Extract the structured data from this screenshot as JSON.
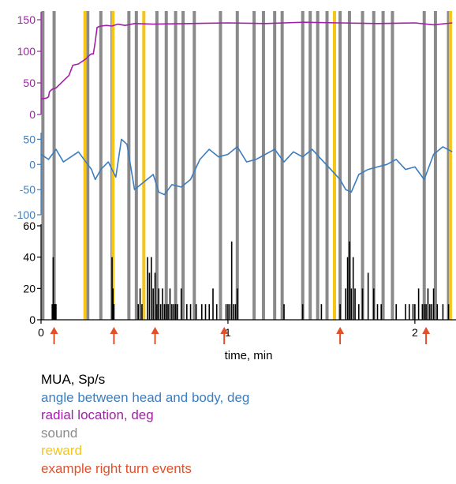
{
  "chart_data": [
    {
      "panel": "radial",
      "type": "line",
      "color": "#a020a8",
      "ylim": [
        0,
        160
      ],
      "yticks": [
        "0",
        "50",
        "100",
        "150"
      ],
      "ytick_values": [
        0,
        50,
        100,
        150
      ],
      "series": [
        {
          "name": "radial location, deg",
          "x": [
            0.0,
            0.01,
            0.03,
            0.04,
            0.045,
            0.06,
            0.08,
            0.15,
            0.17,
            0.2,
            0.24,
            0.26,
            0.27,
            0.28,
            0.29,
            0.3,
            0.32,
            0.35,
            0.38,
            0.41,
            0.45,
            0.5,
            0.6,
            0.8,
            1.0,
            1.2,
            1.4,
            1.6,
            1.8,
            2.0,
            2.1,
            2.2
          ],
          "y": [
            25,
            25,
            26,
            28,
            36,
            40,
            42,
            62,
            78,
            80,
            88,
            94,
            96,
            96,
            115,
            138,
            140,
            141,
            140,
            143,
            141,
            144,
            143,
            144,
            145,
            144,
            146,
            145,
            144,
            145,
            142,
            145
          ]
        }
      ]
    },
    {
      "panel": "angle",
      "type": "line",
      "color": "#3b7dbf",
      "ylim": [
        -100,
        60
      ],
      "yticks": [
        "-100",
        "-50",
        "0",
        "50"
      ],
      "ytick_values": [
        -100,
        -50,
        0,
        50
      ],
      "series": [
        {
          "name": "angle between head and body, deg",
          "x": [
            0.0,
            0.04,
            0.08,
            0.12,
            0.16,
            0.2,
            0.24,
            0.27,
            0.29,
            0.32,
            0.36,
            0.4,
            0.43,
            0.46,
            0.5,
            0.55,
            0.6,
            0.63,
            0.66,
            0.7,
            0.75,
            0.8,
            0.85,
            0.9,
            0.95,
            1.0,
            1.05,
            1.1,
            1.15,
            1.2,
            1.25,
            1.3,
            1.35,
            1.4,
            1.45,
            1.5,
            1.55,
            1.6,
            1.63,
            1.66,
            1.7,
            1.75,
            1.8,
            1.85,
            1.9,
            1.95,
            2.0,
            2.05,
            2.1,
            2.15,
            2.2
          ],
          "y": [
            20,
            10,
            30,
            5,
            15,
            25,
            5,
            -10,
            -30,
            -10,
            5,
            -25,
            50,
            40,
            -50,
            -35,
            -20,
            -55,
            -60,
            -40,
            -45,
            -30,
            10,
            30,
            15,
            20,
            35,
            5,
            10,
            20,
            30,
            5,
            25,
            15,
            30,
            10,
            -10,
            -30,
            -50,
            -55,
            -20,
            -10,
            -5,
            0,
            10,
            -10,
            -5,
            -30,
            20,
            35,
            25
          ]
        }
      ]
    },
    {
      "panel": "mua",
      "type": "bar",
      "xlabel": "time, min",
      "xticks": [
        "0",
        "1",
        "2"
      ],
      "xtick_values": [
        0,
        1,
        2
      ],
      "ylim": [
        0,
        60
      ],
      "yticks": [
        "0",
        "20",
        "40",
        "60"
      ],
      "ytick_values": [
        0,
        20,
        40,
        60
      ],
      "series": [
        {
          "name": "MUA, Sp/s",
          "x": [
            0.06,
            0.065,
            0.07,
            0.075,
            0.08,
            0.38,
            0.385,
            0.39,
            0.52,
            0.53,
            0.54,
            0.57,
            0.58,
            0.59,
            0.6,
            0.61,
            0.62,
            0.63,
            0.64,
            0.65,
            0.66,
            0.67,
            0.68,
            0.69,
            0.7,
            0.71,
            0.72,
            0.73,
            0.75,
            0.78,
            0.8,
            0.83,
            0.86,
            0.88,
            0.9,
            0.92,
            0.94,
            0.99,
            1.0,
            1.01,
            1.02,
            1.03,
            1.04,
            1.05,
            1.3,
            1.4,
            1.5,
            1.6,
            1.63,
            1.64,
            1.65,
            1.66,
            1.67,
            1.68,
            1.7,
            1.72,
            1.75,
            1.78,
            1.8,
            1.82,
            1.9,
            1.95,
            1.97,
            1.99,
            2.0,
            2.02,
            2.04,
            2.05,
            2.06,
            2.07,
            2.08,
            2.09,
            2.1,
            2.12,
            2.15,
            2.18
          ],
          "values": [
            10,
            40,
            10,
            10,
            10,
            40,
            20,
            10,
            10,
            20,
            10,
            40,
            30,
            40,
            20,
            30,
            10,
            20,
            10,
            20,
            10,
            10,
            10,
            20,
            10,
            10,
            10,
            10,
            20,
            10,
            10,
            10,
            10,
            10,
            10,
            20,
            10,
            10,
            10,
            10,
            50,
            10,
            10,
            20,
            10,
            10,
            10,
            10,
            20,
            40,
            50,
            20,
            40,
            20,
            10,
            20,
            30,
            20,
            10,
            10,
            10,
            10,
            10,
            10,
            10,
            20,
            10,
            10,
            10,
            20,
            10,
            10,
            20,
            10,
            10,
            10
          ]
        }
      ]
    }
  ],
  "events": {
    "sound": {
      "name": "sound",
      "color": "#8a8a8a",
      "times": [
        0.01,
        0.07,
        0.25,
        0.32,
        0.38,
        0.47,
        0.51,
        0.62,
        0.67,
        0.72,
        0.76,
        0.82,
        0.96,
        1.05,
        1.14,
        1.19,
        1.25,
        1.29,
        1.4,
        1.44,
        1.48,
        1.53,
        1.6,
        1.65,
        1.72,
        1.78,
        1.83,
        1.88,
        2.05,
        2.11,
        2.18
      ]
    },
    "reward": {
      "name": "reward",
      "color": "#f5c518",
      "times": [
        0.235,
        0.385,
        0.55,
        1.57,
        2.19
      ]
    },
    "right_turn": {
      "name": "example right turn events",
      "color": "#e0502a",
      "times": [
        0.07,
        0.39,
        0.61,
        0.98,
        1.6,
        2.06
      ]
    }
  },
  "legend": [
    {
      "label": "MUA, Sp/s",
      "color": "#000000"
    },
    {
      "label": "angle between head and body, deg",
      "color": "#3b7dbf"
    },
    {
      "label": "radial location, deg",
      "color": "#a020a8"
    },
    {
      "label": "sound",
      "color": "#8a8a8a"
    },
    {
      "label": "reward",
      "color": "#f5c518"
    },
    {
      "label": "example right turn events",
      "color": "#e0502a"
    }
  ]
}
